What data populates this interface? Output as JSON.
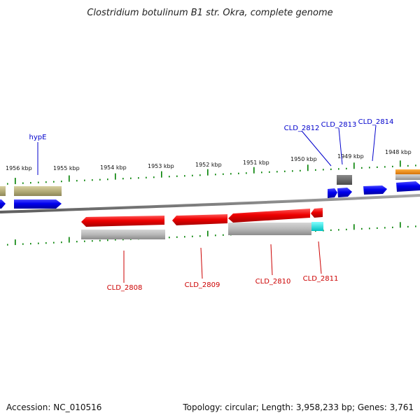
{
  "header": {
    "title": "Clostridium botulinum B1 str. Okra, complete genome"
  },
  "footer": {
    "accession": "Accession: NC_010516",
    "summary": "Topology: circular; Length: 3,958,233 bp; Genes: 3,761"
  },
  "colors": {
    "forward_gene": "#0000ee",
    "reverse_gene": "#ee0000",
    "forward_label": "#0000cc",
    "reverse_label": "#cc0000",
    "tick": "#008000",
    "backbone": "#808080",
    "olive_feature": "#b5ad7a",
    "orange_feature": "#f08a00",
    "cyan_feature": "#00e5e5"
  },
  "scale": {
    "ticks": [
      {
        "label": "1956 kbp"
      },
      {
        "label": "1955 kbp"
      },
      {
        "label": "1954 kbp"
      },
      {
        "label": "1953 kbp"
      },
      {
        "label": "1952 kbp"
      },
      {
        "label": "1951 kbp"
      },
      {
        "label": "1950 kbp"
      },
      {
        "label": "1949 kbp"
      },
      {
        "label": "1948 kbp"
      }
    ]
  },
  "genes": {
    "forward": [
      {
        "label": "hypE",
        "icon": "right-arrow-icon"
      },
      {
        "label": "CLD_2812",
        "icon": "right-arrow-icon"
      },
      {
        "label": "CLD_2813",
        "icon": "right-arrow-icon"
      },
      {
        "label": "CLD_2814",
        "icon": "right-arrow-icon"
      }
    ],
    "reverse": [
      {
        "label": "CLD_2808",
        "icon": "left-arrow-icon"
      },
      {
        "label": "CLD_2809",
        "icon": "left-arrow-icon"
      },
      {
        "label": "CLD_2810",
        "icon": "left-arrow-icon"
      },
      {
        "label": "CLD_2811",
        "icon": "left-arrow-icon"
      }
    ]
  }
}
